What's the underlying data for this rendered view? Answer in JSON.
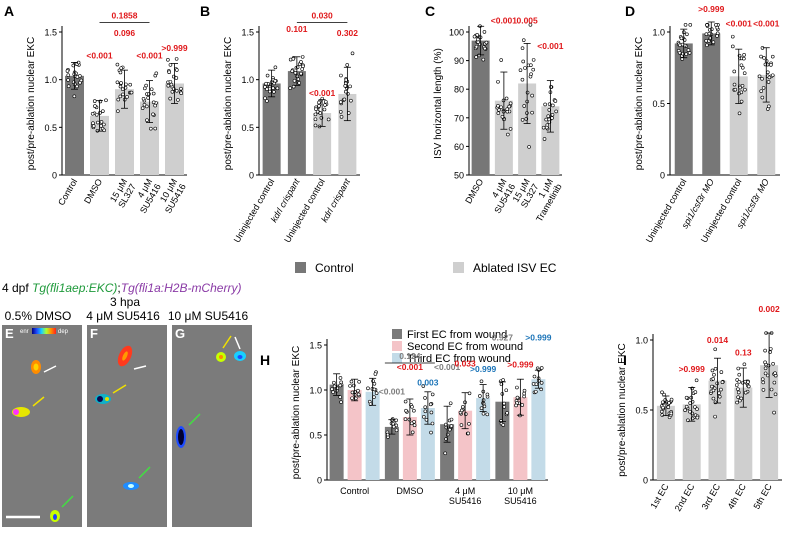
{
  "colors": {
    "control": "#777777",
    "ablated": "#cfcfcf",
    "first_ec": "#7a7a7a",
    "second_ec": "#f4c4c8",
    "third_ec": "#c3dbe8",
    "red_text": "#e0181b",
    "blue_text": "#1b74b8",
    "grey_text": "#7d7d7d",
    "image_bg": "#7b7b7b"
  },
  "legend_main": {
    "control": "Control",
    "ablated": "Ablated ISV EC"
  },
  "imaging": {
    "title_a": "4 dpf ",
    "title_b": "Tg(fli1aep:EKC)",
    "title_c": ";",
    "title_d": "Tg(fli1a:H2B-mCherry)",
    "hpa": "3 hpa",
    "colorbar_left": "enr",
    "colorbar_right": "dep",
    "panels": [
      {
        "label": "E",
        "title": "0.5% DMSO"
      },
      {
        "label": "F",
        "title": "4 μM SU5416"
      },
      {
        "label": "G",
        "title": "10 μM SU5416"
      }
    ]
  },
  "chart_data": [
    {
      "id": "A",
      "label": "A",
      "type": "bar",
      "ylabel": "post/pre-ablation nuclear EKC",
      "ylim": [
        0,
        1.5
      ],
      "yticks": [
        "0",
        "0.5",
        "1.0",
        "1.5"
      ],
      "categories": [
        "Control",
        "DMSO",
        "15 μM SL327",
        "4 μM SU5416",
        "10 μM SU5416"
      ],
      "category_lines": [
        [
          "Control"
        ],
        [
          "DMSO"
        ],
        [
          "15 μM",
          "SL327"
        ],
        [
          "4 μM",
          "SU5416"
        ],
        [
          "10 μM",
          "SU5416"
        ]
      ],
      "groups": [
        "control",
        "ablated",
        "ablated",
        "ablated",
        "ablated"
      ],
      "values": [
        1.04,
        0.62,
        0.9,
        0.77,
        0.96
      ],
      "errors": [
        0.14,
        0.16,
        0.2,
        0.22,
        0.21
      ],
      "annotations": [
        {
          "text": "<0.001",
          "cat": 1,
          "y": 1.22,
          "color": "red"
        },
        {
          "text": "0.096",
          "cat": 2,
          "y": 1.46,
          "color": "red"
        },
        {
          "text": "<0.001",
          "cat": 3,
          "y": 1.22,
          "color": "red"
        },
        {
          "text": ">0.999",
          "cat": 4,
          "y": 1.3,
          "color": "red"
        }
      ],
      "brackets": [
        {
          "text": "0.1858",
          "from": 1,
          "to": 3,
          "y": 1.6,
          "color": "red"
        }
      ]
    },
    {
      "id": "B",
      "label": "B",
      "type": "bar",
      "ylabel": "post/pre-ablation nuclear EKC",
      "ylim": [
        0,
        1.5
      ],
      "yticks": [
        "0",
        "0.5",
        "1.0",
        "1.5"
      ],
      "categories": [
        "Uninjected control",
        "kdrl crispant",
        "Uninjected control",
        "kdrl crispant"
      ],
      "category_lines": [
        [
          "Uninjected control"
        ],
        [
          "kdrl crispant"
        ],
        [
          "Uninjected control"
        ],
        [
          "kdrl crispant"
        ]
      ],
      "category_italic": [
        false,
        true,
        false,
        true
      ],
      "groups": [
        "control",
        "control",
        "ablated",
        "ablated"
      ],
      "values": [
        0.96,
        1.09,
        0.65,
        0.85
      ],
      "errors": [
        0.14,
        0.15,
        0.14,
        0.28
      ],
      "annotations": [
        {
          "text": "0.101",
          "cat": 1,
          "y": 1.5,
          "color": "red"
        },
        {
          "text": "<0.001",
          "cat": 2,
          "y": 0.83,
          "color": "red"
        },
        {
          "text": "0.302",
          "cat": 3,
          "y": 1.46,
          "color": "red"
        }
      ],
      "brackets": [
        {
          "text": "0.030",
          "from": 1,
          "to": 3,
          "y": 1.6,
          "color": "red"
        }
      ]
    },
    {
      "id": "C",
      "label": "C",
      "type": "bar",
      "ylabel": "ISV horizontal length (%)",
      "ylim": [
        50,
        100
      ],
      "yticks": [
        "50",
        "60",
        "70",
        "80",
        "90",
        "100"
      ],
      "categories": [
        "DMSO",
        "4 μM SU5416",
        "15 μM SL327",
        "1 μM Trametinib"
      ],
      "category_lines": [
        [
          "DMSO"
        ],
        [
          "4 μM",
          "SU5416"
        ],
        [
          "15 μM",
          "SL327"
        ],
        [
          "1 μM",
          "Trametinib"
        ]
      ],
      "groups": [
        "control",
        "ablated",
        "ablated",
        "ablated"
      ],
      "values": [
        97,
        76,
        82,
        74
      ],
      "errors": [
        5,
        10,
        14,
        9
      ],
      "annotations": [
        {
          "text": "<0.001",
          "cat": 1,
          "y": 103,
          "color": "red"
        },
        {
          "text": "0.005",
          "cat": 2,
          "y": 103,
          "color": "red"
        },
        {
          "text": "<0.001",
          "cat": 3,
          "y": 94,
          "color": "red"
        }
      ],
      "brackets": []
    },
    {
      "id": "D",
      "label": "D",
      "type": "bar",
      "ylabel": "post/pre-ablation nuclear EKC",
      "ylim": [
        0,
        1.0
      ],
      "yticks": [
        "0",
        "0.5",
        "1.0"
      ],
      "categories": [
        "Uninjected control",
        "spi1/csf3r MO",
        "Uninjected control",
        "spi1/csf3r MO"
      ],
      "category_lines": [
        [
          "Uninjected control"
        ],
        [
          "spi1/csf3r MO"
        ],
        [
          "Uninjected control"
        ],
        [
          "spi1/csf3r MO"
        ]
      ],
      "category_italic": [
        false,
        true,
        false,
        true
      ],
      "groups": [
        "control",
        "control",
        "ablated",
        "ablated"
      ],
      "values": [
        0.92,
        0.99,
        0.69,
        0.7
      ],
      "errors": [
        0.1,
        0.08,
        0.19,
        0.19
      ],
      "annotations": [
        {
          "text": ">0.999",
          "cat": 1,
          "y": 1.14,
          "color": "red"
        },
        {
          "text": "<0.001",
          "cat": 2,
          "y": 1.04,
          "color": "red"
        },
        {
          "text": "<0.001",
          "cat": 3,
          "y": 1.04,
          "color": "red"
        }
      ],
      "brackets": []
    },
    {
      "id": "H",
      "label": "H",
      "type": "bar",
      "ylabel": "post/pre-ablation nuclear EKC",
      "ylim": [
        0,
        1.5
      ],
      "yticks": [
        "0",
        "0.5",
        "1.0",
        "1.5"
      ],
      "categories": [
        "Control",
        "DMSO",
        "4 μM SU5416",
        "10 μM SU5416"
      ],
      "category_lines": [
        [
          "Control"
        ],
        [
          "DMSO"
        ],
        [
          "4 μM",
          "SU5416"
        ],
        [
          "10 μM",
          "SU5416"
        ]
      ],
      "legend": [
        "First EC from wound",
        "Second EC from wound",
        "Third EC from wound"
      ],
      "series": [
        {
          "name": "First EC from wound",
          "values": [
            1.06,
            0.59,
            0.62,
            0.87
          ],
          "errors": [
            0.12,
            0.08,
            0.2,
            0.22
          ]
        },
        {
          "name": "Second EC from wound",
          "values": [
            1.0,
            0.7,
            0.77,
            0.92
          ],
          "errors": [
            0.12,
            0.2,
            0.2,
            0.2
          ]
        },
        {
          "name": "Third EC from wound",
          "values": [
            0.98,
            0.8,
            0.91,
            1.12
          ],
          "errors": [
            0.15,
            0.18,
            0.15,
            0.1
          ]
        }
      ],
      "annotations": [
        {
          "text": "<0.001",
          "cat": 1,
          "s": 0,
          "y": 0.95,
          "color": "grey"
        },
        {
          "text": "<0.001",
          "cat": 1,
          "s": 1,
          "y": 1.22,
          "color": "red"
        },
        {
          "text": "0.003",
          "cat": 1,
          "s": 2,
          "y": 1.05,
          "color": "blue"
        },
        {
          "text": "<0.001",
          "cat": 2,
          "s": 0,
          "y": 1.22,
          "color": "grey"
        },
        {
          "text": "0.033",
          "cat": 2,
          "s": 1,
          "y": 1.26,
          "color": "red"
        },
        {
          "text": ">0.999",
          "cat": 2,
          "s": 2,
          "y": 1.2,
          "color": "blue"
        },
        {
          "text": "0.927",
          "cat": 3,
          "s": 0,
          "y": 1.55,
          "color": "grey"
        },
        {
          "text": ">0.999",
          "cat": 3,
          "s": 1,
          "y": 1.25,
          "color": "red"
        },
        {
          "text": ">0.999",
          "cat": 3,
          "s": 2,
          "y": 1.55,
          "color": "blue"
        }
      ],
      "brackets": [
        {
          "text": "0.124",
          "from": 1,
          "to": 1,
          "y": 1.3,
          "color": "grey"
        }
      ]
    },
    {
      "id": "I",
      "label": "I",
      "type": "bar",
      "ylabel": "post/pre-ablation nuclear EKC",
      "ylim": [
        0,
        1.0
      ],
      "yticks": [
        "0",
        "0.5",
        "1.0"
      ],
      "categories": [
        "1st EC",
        "2nd EC",
        "3rd EC",
        "4th EC",
        "5th EC"
      ],
      "category_lines": [
        [
          "1st EC"
        ],
        [
          "2nd EC"
        ],
        [
          "3rd EC"
        ],
        [
          "4th EC"
        ],
        [
          "5th EC"
        ]
      ],
      "groups": [
        "ablated",
        "ablated",
        "ablated",
        "ablated",
        "ablated"
      ],
      "values": [
        0.53,
        0.54,
        0.71,
        0.66,
        0.82
      ],
      "errors": [
        0.07,
        0.12,
        0.16,
        0.14,
        0.23
      ],
      "annotations": [
        {
          "text": ">0.999",
          "cat": 1,
          "y": 0.77,
          "color": "red"
        },
        {
          "text": "0.014",
          "cat": 2,
          "y": 0.98,
          "color": "red"
        },
        {
          "text": "0.13",
          "cat": 3,
          "y": 0.89,
          "color": "red"
        },
        {
          "text": "0.002",
          "cat": 4,
          "y": 1.2,
          "color": "red"
        }
      ],
      "brackets": []
    }
  ]
}
